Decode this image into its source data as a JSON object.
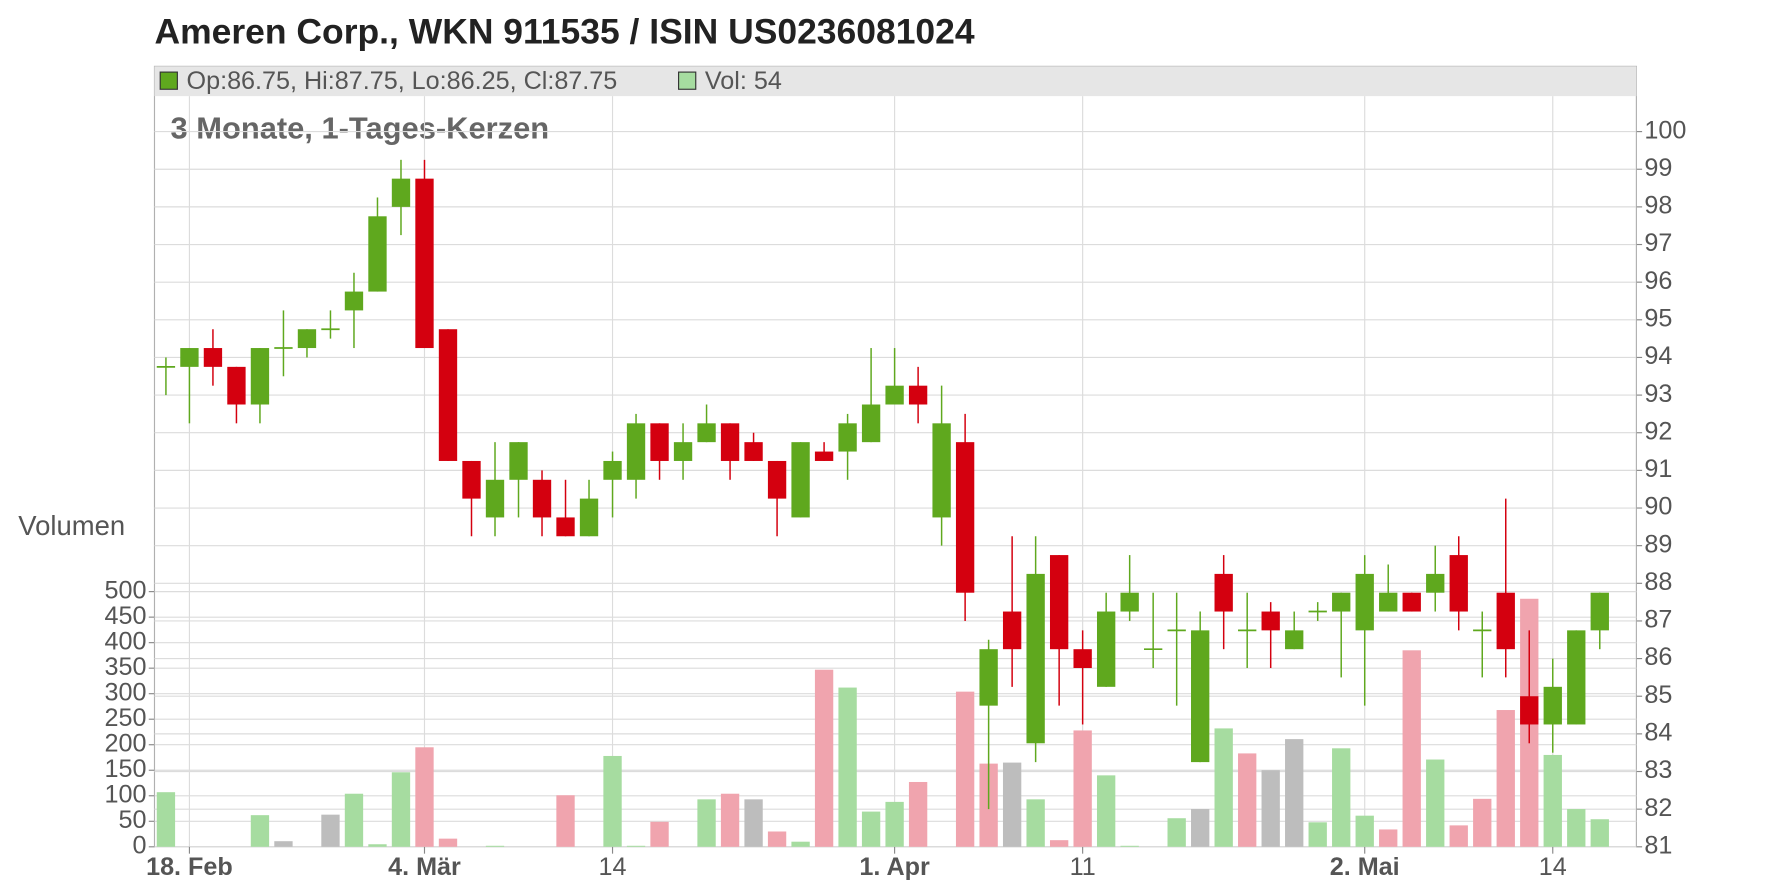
{
  "chart_data": {
    "type": "candlestick",
    "title": "Ameren Corp., WKN 911535 / ISIN US0236081024",
    "subtitle": "3 Monate, 1-Tages-Kerzen",
    "ohlc_label": "Op:86.75, Hi:87.75, Lo:86.25, Cl:87.75",
    "volume_label": "Vol: 54",
    "volume_axis_label": "Volumen",
    "categories": [
      null,
      "18. Feb",
      null,
      null,
      null,
      null,
      null,
      null,
      null,
      null,
      null,
      "4. Mär",
      null,
      null,
      null,
      null,
      null,
      null,
      null,
      "14",
      null,
      null,
      null,
      null,
      null,
      null,
      null,
      null,
      null,
      null,
      null,
      "1. Apr",
      null,
      null,
      null,
      null,
      null,
      null,
      null,
      "11",
      null,
      null,
      null,
      null,
      null,
      null,
      null,
      null,
      null,
      null,
      null,
      "2. Mai",
      null,
      null,
      null,
      null,
      null,
      null,
      null,
      "14",
      null,
      null
    ],
    "open": [
      93.75,
      93.75,
      94.25,
      93.75,
      92.75,
      94.25,
      94.25,
      94.75,
      95.25,
      95.75,
      98,
      98.75,
      94.75,
      91.25,
      89.75,
      90.75,
      90.75,
      89.75,
      89.25,
      90.75,
      90.75,
      92.25,
      91.25,
      91.75,
      92.25,
      91.75,
      91.25,
      89.75,
      91.5,
      91.5,
      91.75,
      92.75,
      93.25,
      89.75,
      91.75,
      84.75,
      87.25,
      83.75,
      88.75,
      86.25,
      85.25,
      87.25,
      86.25,
      86.75,
      83.25,
      88.25,
      86.75,
      87.25,
      86.25,
      87.25,
      87.25,
      86.75,
      87.25,
      87.75,
      87.75,
      88.75,
      86.75,
      87.75,
      85,
      84.25,
      84.25,
      86.75
    ],
    "high": [
      94,
      94.25,
      94.75,
      93.75,
      94.25,
      95.25,
      94.75,
      95.25,
      96.25,
      98.25,
      99.25,
      99.25,
      94.75,
      91.25,
      91.75,
      91.75,
      91,
      90.75,
      90.75,
      91.5,
      92.5,
      92.25,
      92.25,
      92.75,
      92.25,
      92,
      91.25,
      91.75,
      91.75,
      92.5,
      94.25,
      94.25,
      93.75,
      93.25,
      92.5,
      86.5,
      89.25,
      89.25,
      88.75,
      86.75,
      87.75,
      88.75,
      87.75,
      87.75,
      87.25,
      88.75,
      87.75,
      87.5,
      87.25,
      87.5,
      87.75,
      88.75,
      88.5,
      87.75,
      89,
      89.25,
      87.25,
      90.25,
      86.75,
      86,
      86.75,
      87.75
    ],
    "low": [
      93,
      92.25,
      93.25,
      92.25,
      92.25,
      93.5,
      94,
      94.5,
      94.25,
      95.75,
      97.25,
      94.25,
      91.25,
      89.25,
      89.25,
      89.75,
      89.25,
      89.25,
      89.25,
      89.75,
      90.25,
      90.75,
      90.75,
      91.75,
      90.75,
      91.25,
      89.25,
      89.75,
      91.25,
      90.75,
      91.75,
      92.75,
      92.25,
      89,
      87,
      82,
      85.25,
      83.25,
      84.75,
      84.25,
      85.25,
      87,
      85.75,
      84.75,
      83.25,
      86.25,
      85.75,
      85.75,
      86.25,
      87,
      85.5,
      84.75,
      87.25,
      87.25,
      87.25,
      86.75,
      85.5,
      85.5,
      83.75,
      83.5,
      84.25,
      86.25
    ],
    "close": [
      93.75,
      94.25,
      93.75,
      92.75,
      94.25,
      94.25,
      94.75,
      94.75,
      95.75,
      97.75,
      98.75,
      94.25,
      91.25,
      90.25,
      90.75,
      91.75,
      89.75,
      89.25,
      90.25,
      91.25,
      92.25,
      91.25,
      91.75,
      92.25,
      91.25,
      91.25,
      90.25,
      91.75,
      91.25,
      92.25,
      92.75,
      93.25,
      92.75,
      92.25,
      87.75,
      86.25,
      86.25,
      88.25,
      86.25,
      85.75,
      87.25,
      87.75,
      86.25,
      86.75,
      86.75,
      87.25,
      86.75,
      86.75,
      86.75,
      87.25,
      87.75,
      88.25,
      87.75,
      87.25,
      88.25,
      87.25,
      86.75,
      86.25,
      84.25,
      85.25,
      86.75,
      87.75
    ],
    "volume": [
      107,
      0,
      0,
      0,
      62,
      11,
      0,
      63,
      104,
      5,
      146,
      195,
      16,
      0,
      2,
      0,
      0,
      101,
      0,
      178,
      2,
      49,
      0,
      93,
      104,
      93,
      30,
      10,
      347,
      312,
      69,
      88,
      127,
      0,
      304,
      163,
      165,
      93,
      13,
      228,
      140,
      2,
      0,
      56,
      74,
      232,
      183,
      150,
      211,
      48,
      193,
      61,
      34,
      385,
      171,
      42,
      94,
      268,
      486,
      180,
      74,
      54
    ],
    "ylim": [
      81,
      100
    ],
    "yticks": [
      81,
      82,
      83,
      84,
      85,
      86,
      87,
      88,
      89,
      90,
      91,
      92,
      93,
      94,
      95,
      96,
      97,
      98,
      99,
      100
    ],
    "y2lim": [
      0,
      500
    ],
    "y2ticks": [
      0,
      50,
      100,
      150,
      200,
      250,
      300,
      350,
      400,
      450,
      500
    ],
    "grid": true,
    "up_color": "#5fa81e",
    "down_color": "#d4000f",
    "volume_up_color": "#a6dca0",
    "volume_down_color": "#f0a4ae",
    "volume_flat_color": "#bdbdbd"
  }
}
